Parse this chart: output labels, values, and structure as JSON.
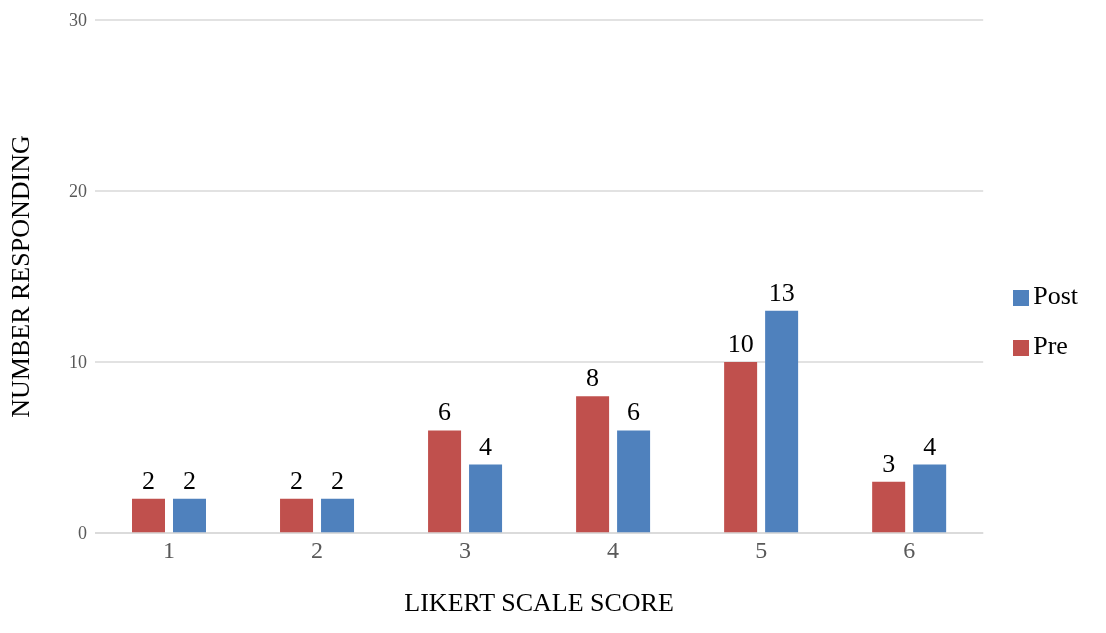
{
  "chart_data": {
    "type": "bar",
    "xlabel": "LIKERT SCALE SCORE",
    "ylabel": "NUMBER RESPONDING",
    "categories": [
      "1",
      "2",
      "3",
      "4",
      "5",
      "6"
    ],
    "series": [
      {
        "name": "Pre",
        "color": "#c0504d",
        "values": [
          2,
          2,
          6,
          8,
          10,
          3
        ]
      },
      {
        "name": "Post",
        "color": "#4f81bd",
        "values": [
          2,
          2,
          4,
          6,
          13,
          4
        ]
      }
    ],
    "ylim": [
      0,
      30
    ],
    "yticks": [
      0,
      10,
      20,
      30
    ],
    "grid": "y",
    "legend": "right",
    "data_labels": true
  }
}
